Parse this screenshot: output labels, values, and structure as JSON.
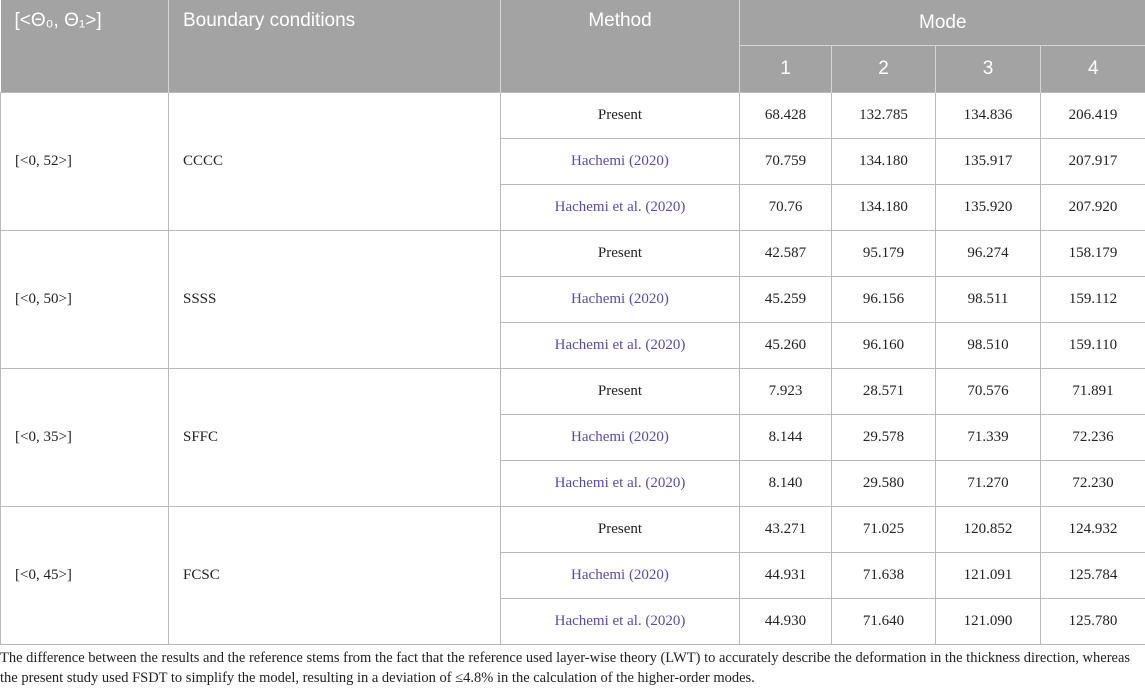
{
  "header": {
    "angle_label": "[<Θ₀, Θ₁>]",
    "bc_label": "Boundary conditions",
    "method_label": "Method",
    "mode_label": "Mode",
    "mode_numbers": [
      "1",
      "2",
      "3",
      "4"
    ]
  },
  "groups": [
    {
      "angle": "[<0, 52>]",
      "bc": "CCCC",
      "rows": [
        {
          "method": "Present",
          "m1": "68.428",
          "m2": "132.785",
          "m3": "134.836",
          "m4": "206.419"
        },
        {
          "method": "Hachemi (2020)",
          "m1": "70.759",
          "m2": "134.180",
          "m3": "135.917",
          "m4": "207.917"
        },
        {
          "method": "Hachemi et al. (2020)",
          "m1": "70.76",
          "m2": "134.180",
          "m3": "135.920",
          "m4": "207.920"
        }
      ]
    },
    {
      "angle": "[<0, 50>]",
      "bc": "SSSS",
      "rows": [
        {
          "method": "Present",
          "m1": "42.587",
          "m2": "95.179",
          "m3": "96.274",
          "m4": "158.179"
        },
        {
          "method": "Hachemi (2020)",
          "m1": "45.259",
          "m2": "96.156",
          "m3": "98.511",
          "m4": "159.112"
        },
        {
          "method": "Hachemi et al. (2020)",
          "m1": "45.260",
          "m2": "96.160",
          "m3": "98.510",
          "m4": "159.110"
        }
      ]
    },
    {
      "angle": "[<0, 35>]",
      "bc": "SFFC",
      "rows": [
        {
          "method": "Present",
          "m1": "7.923",
          "m2": "28.571",
          "m3": "70.576",
          "m4": "71.891"
        },
        {
          "method": "Hachemi (2020)",
          "m1": "8.144",
          "m2": "29.578",
          "m3": "71.339",
          "m4": "72.236"
        },
        {
          "method": "Hachemi et al. (2020)",
          "m1": "8.140",
          "m2": "29.580",
          "m3": "71.270",
          "m4": "72.230"
        }
      ]
    },
    {
      "angle": "[<0, 45>]",
      "bc": "FCSC",
      "rows": [
        {
          "method": "Present",
          "m1": "43.271",
          "m2": "71.025",
          "m3": "120.852",
          "m4": "124.932"
        },
        {
          "method": "Hachemi (2020)",
          "m1": "44.931",
          "m2": "71.638",
          "m3": "121.091",
          "m4": "125.784"
        },
        {
          "method": "Hachemi et al. (2020)",
          "m1": "44.930",
          "m2": "71.640",
          "m3": "121.090",
          "m4": "125.780"
        }
      ]
    }
  ],
  "footnote": "The difference between the results and the reference stems from the fact that the reference used layer-wise theory (LWT) to accurately describe the deformation in the thickness direction, whereas the present study used FSDT to simplify the model, resulting in a deviation of ≤4.8% in the calculation of the higher-order modes.",
  "colors": {
    "header_bg": "#a3a3a3",
    "reference_link": "#5b4ba8"
  }
}
